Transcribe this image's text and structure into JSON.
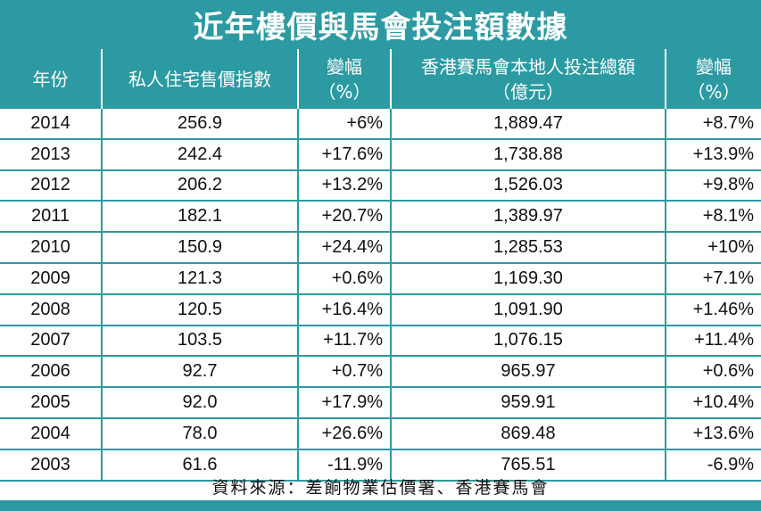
{
  "chart_data": {
    "type": "table",
    "title": "近年樓價與馬會投注額數據",
    "columns": [
      {
        "label": "年份",
        "sub": ""
      },
      {
        "label": "私人住宅售價指數",
        "sub": ""
      },
      {
        "label": "變幅",
        "sub": "（%）"
      },
      {
        "label": "香港賽馬會本地人投注總額",
        "sub": "（億元）"
      },
      {
        "label": "變幅",
        "sub": "（%）"
      }
    ],
    "rows": [
      [
        "2014",
        "256.9",
        "+6%",
        "1,889.47",
        "+8.7%"
      ],
      [
        "2013",
        "242.4",
        "+17.6%",
        "1,738.88",
        "+13.9%"
      ],
      [
        "2012",
        "206.2",
        "+13.2%",
        "1,526.03",
        "+9.8%"
      ],
      [
        "2011",
        "182.1",
        "+20.7%",
        "1,389.97",
        "+8.1%"
      ],
      [
        "2010",
        "150.9",
        "+24.4%",
        "1,285.53",
        "+10%"
      ],
      [
        "2009",
        "121.3",
        "+0.6%",
        "1,169.30",
        "+7.1%"
      ],
      [
        "2008",
        "120.5",
        "+16.4%",
        "1,091.90",
        "+1.46%"
      ],
      [
        "2007",
        "103.5",
        "+11.7%",
        "1,076.15",
        "+11.4%"
      ],
      [
        "2006",
        "92.7",
        "+0.7%",
        "965.97",
        "+0.6%"
      ],
      [
        "2005",
        "92.0",
        "+17.9%",
        "959.91",
        "+10.4%"
      ],
      [
        "2004",
        "78.0",
        "+26.6%",
        "869.48",
        "+13.6%"
      ],
      [
        "2003",
        "61.6",
        "-11.9%",
        "765.51",
        "-6.9%"
      ]
    ],
    "source": "資料來源：差餉物業估價署、香港賽馬會"
  },
  "colors": {
    "accent": "#2b9aa2",
    "header_text": "#ffffff",
    "body_text": "#111111"
  }
}
